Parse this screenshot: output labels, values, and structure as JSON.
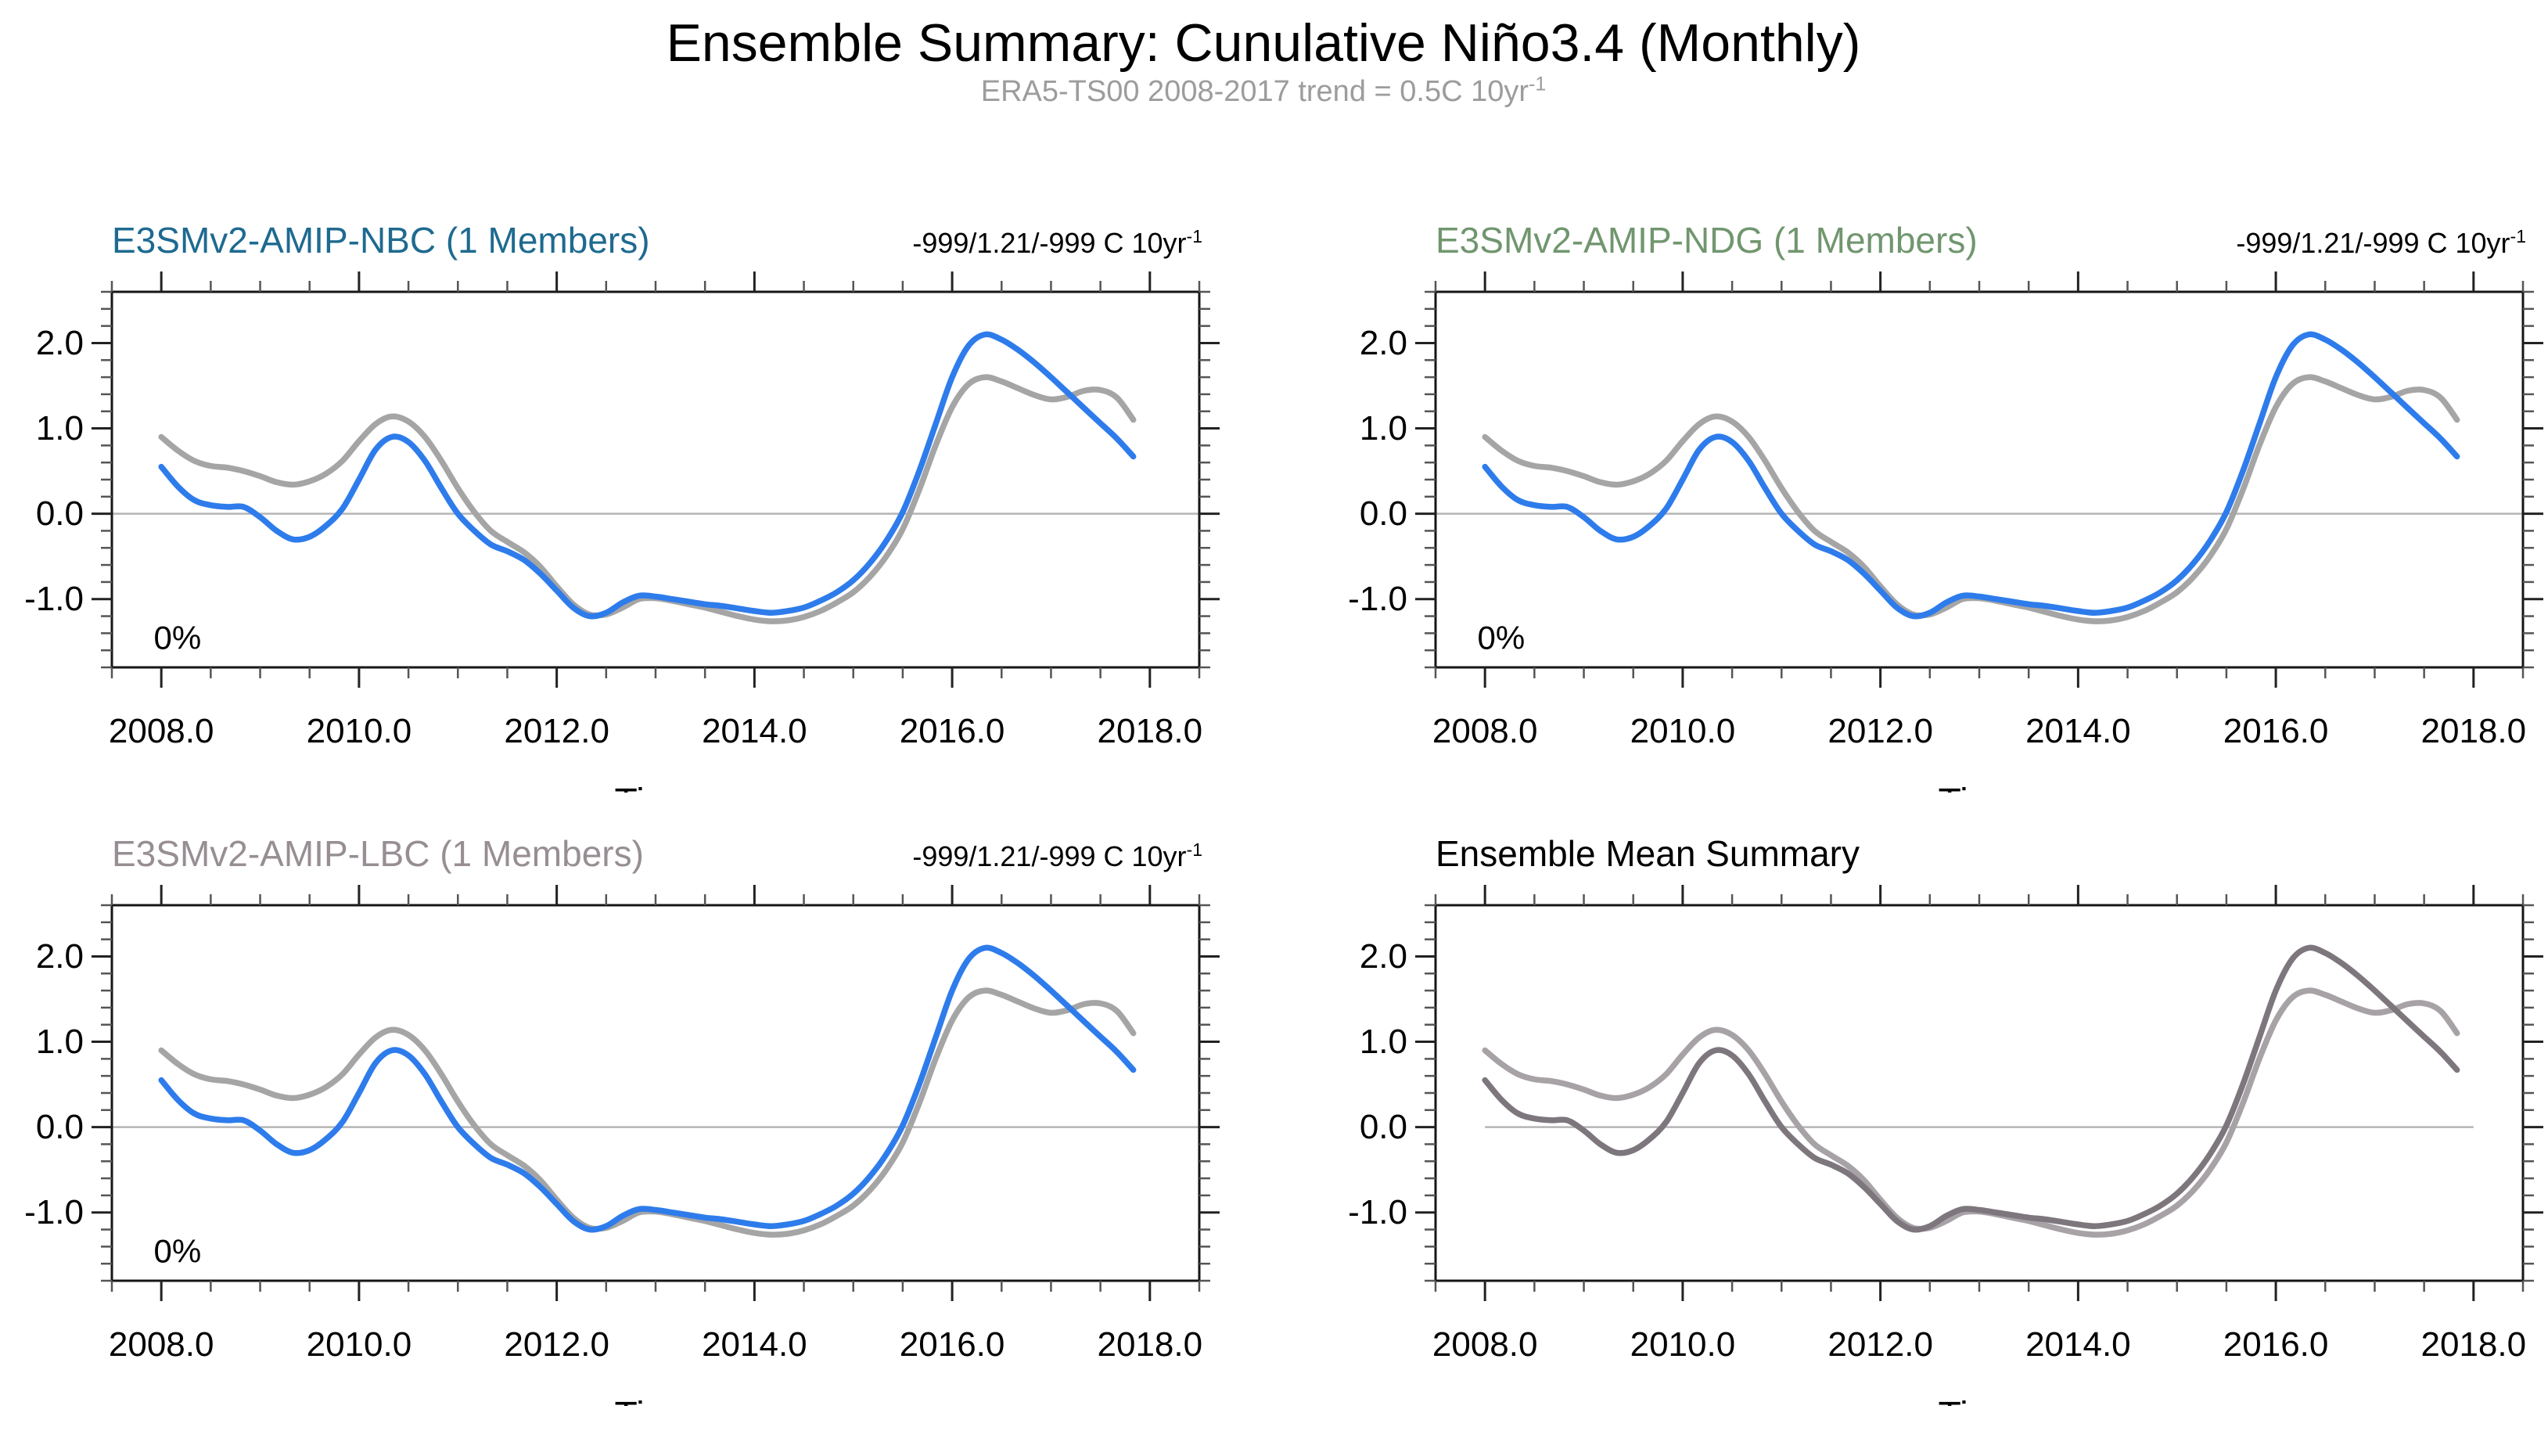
{
  "header": {
    "title": "Ensemble Summary: Cunulative Niño3.4 (Monthly)",
    "subtitle": "ERA5-TS00 2008-2017 trend = 0.5C 10yr",
    "subtitle_sup": "-1",
    "subtitle_color": "#9c9c9c"
  },
  "colors": {
    "model_line": "#2e7ceb",
    "reference_line": "#a5a5a5",
    "mean_model_line": "#7d777d",
    "mean_reference_line": "#a7a2a6",
    "frame": "#161616",
    "zero_line": "#b5b5b5"
  },
  "panels": [
    {
      "id": "nbc",
      "title": "E3SMv2-AMIP-NBC (1 Members)",
      "title_color": "#1e6a90",
      "trend": "-999/1.21/-999 C 10yr",
      "trend_sup": "-1",
      "corner_label": "0%",
      "zero_span": "frame"
    },
    {
      "id": "ndg",
      "title": "E3SMv2-AMIP-NDG (1 Members)",
      "title_color": "#71966f",
      "trend": "-999/1.21/-999 C 10yr",
      "trend_sup": "-1",
      "corner_label": "0%",
      "zero_span": "frame"
    },
    {
      "id": "lbc",
      "title": "E3SMv2-AMIP-LBC (1 Members)",
      "title_color": "#978e93",
      "trend": "-999/1.21/-999 C 10yr",
      "trend_sup": "-1",
      "corner_label": "0%",
      "zero_span": "frame"
    },
    {
      "id": "mean",
      "title": "Ensemble Mean Summary",
      "title_color": "#000000",
      "trend": "",
      "trend_sup": "",
      "corner_label": "",
      "zero_span": "data"
    }
  ],
  "chart_data": {
    "type": "line",
    "xlabel": "Time",
    "xlim": [
      2007.5,
      2018.5
    ],
    "ylim": [
      -1.8,
      2.6
    ],
    "xticks": [
      2008,
      2010,
      2012,
      2014,
      2016,
      2018
    ],
    "xtick_labels": [
      "2008.0",
      "2010.0",
      "2012.0",
      "2014.0",
      "2016.0",
      "2018.0"
    ],
    "x_minor_step": 0.5,
    "yticks": [
      2,
      1,
      0,
      -1
    ],
    "ytick_labels": [
      "2.0",
      "1.0",
      "0.0",
      "-1.0"
    ],
    "y_minor_step": 0.2,
    "grid": "zero-line-only",
    "legend": "none",
    "zero_line_data_span": [
      2008.0,
      2018.0
    ],
    "x": [
      2008.0,
      2008.167,
      2008.333,
      2008.5,
      2008.667,
      2008.833,
      2009.0,
      2009.167,
      2009.333,
      2009.5,
      2009.667,
      2009.833,
      2010.0,
      2010.167,
      2010.333,
      2010.5,
      2010.667,
      2010.833,
      2011.0,
      2011.167,
      2011.333,
      2011.5,
      2011.667,
      2011.833,
      2012.0,
      2012.167,
      2012.333,
      2012.5,
      2012.667,
      2012.833,
      2013.0,
      2013.167,
      2013.333,
      2013.5,
      2013.667,
      2013.833,
      2014.0,
      2014.167,
      2014.333,
      2014.5,
      2014.667,
      2014.833,
      2015.0,
      2015.167,
      2015.333,
      2015.5,
      2015.667,
      2015.833,
      2016.0,
      2016.167,
      2016.333,
      2016.5,
      2016.667,
      2016.833,
      2017.0,
      2017.167,
      2017.333,
      2017.5,
      2017.667,
      2017.833
    ],
    "series": [
      {
        "name": "model_member",
        "values": [
          0.55,
          0.32,
          0.16,
          0.1,
          0.08,
          0.08,
          -0.04,
          -0.2,
          -0.3,
          -0.27,
          -0.14,
          0.06,
          0.4,
          0.75,
          0.9,
          0.84,
          0.62,
          0.3,
          0.0,
          -0.2,
          -0.36,
          -0.44,
          -0.54,
          -0.7,
          -0.9,
          -1.1,
          -1.2,
          -1.16,
          -1.04,
          -0.96,
          -0.97,
          -1.0,
          -1.03,
          -1.06,
          -1.08,
          -1.11,
          -1.14,
          -1.16,
          -1.14,
          -1.1,
          -1.02,
          -0.92,
          -0.78,
          -0.58,
          -0.32,
          0.02,
          0.5,
          1.05,
          1.6,
          1.97,
          2.1,
          2.04,
          1.92,
          1.77,
          1.6,
          1.42,
          1.24,
          1.06,
          0.88,
          0.67
        ]
      },
      {
        "name": "era5_reference",
        "values": [
          0.9,
          0.74,
          0.62,
          0.56,
          0.54,
          0.5,
          0.44,
          0.37,
          0.34,
          0.38,
          0.47,
          0.62,
          0.85,
          1.05,
          1.14,
          1.08,
          0.9,
          0.62,
          0.3,
          0.02,
          -0.2,
          -0.33,
          -0.45,
          -0.62,
          -0.85,
          -1.06,
          -1.18,
          -1.18,
          -1.1,
          -1.0,
          -0.99,
          -1.02,
          -1.06,
          -1.1,
          -1.15,
          -1.2,
          -1.24,
          -1.26,
          -1.25,
          -1.21,
          -1.14,
          -1.04,
          -0.92,
          -0.74,
          -0.5,
          -0.18,
          0.28,
          0.8,
          1.25,
          1.52,
          1.6,
          1.55,
          1.47,
          1.39,
          1.34,
          1.37,
          1.44,
          1.45,
          1.36,
          1.1
        ]
      }
    ],
    "panels": [
      {
        "panel": "nbc",
        "lines": [
          {
            "series": "era5_reference",
            "color": "#a5a5a5"
          },
          {
            "series": "model_member",
            "color": "#2e7ceb"
          }
        ]
      },
      {
        "panel": "ndg",
        "lines": [
          {
            "series": "era5_reference",
            "color": "#a5a5a5"
          },
          {
            "series": "model_member",
            "color": "#2e7ceb"
          }
        ]
      },
      {
        "panel": "lbc",
        "lines": [
          {
            "series": "era5_reference",
            "color": "#a5a5a5"
          },
          {
            "series": "model_member",
            "color": "#2e7ceb"
          }
        ]
      },
      {
        "panel": "mean",
        "lines": [
          {
            "series": "era5_reference",
            "color": "#a7a2a6"
          },
          {
            "series": "model_member",
            "color": "#7d777d"
          }
        ]
      }
    ],
    "annotations": {
      "corner_label_value": "0%",
      "corner_label_position": [
        2008.05,
        -1.45
      ]
    }
  }
}
